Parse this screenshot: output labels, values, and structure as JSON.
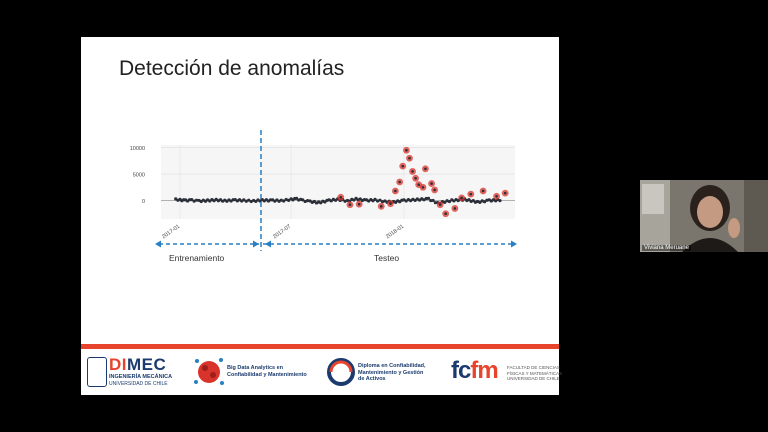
{
  "slide": {
    "title": "Detección de anomalías"
  },
  "chart_data": {
    "type": "scatter",
    "title": "",
    "y_ticks": [
      "10000",
      "5000",
      "0"
    ],
    "x_ticks": [
      "2017-01",
      "2017-07",
      "2018-01"
    ],
    "ylim": [
      -3500,
      10500
    ],
    "grid": true,
    "x_range": [
      "2016-12",
      "2018-07"
    ],
    "series": [
      {
        "marker": "normal",
        "color": "#2b2f3a",
        "x": [
          "2016-12-25",
          "2017-01-01",
          "2017-01-10",
          "2017-01-20",
          "2017-02-01",
          "2017-02-15",
          "2017-03-01",
          "2017-03-15",
          "2017-04-01",
          "2017-04-15",
          "2017-05-01",
          "2017-05-15",
          "2017-06-01",
          "2017-06-15",
          "2017-07-01",
          "2017-07-10",
          "2017-07-20",
          "2017-08-01",
          "2017-08-15",
          "2017-09-01",
          "2017-09-15",
          "2017-10-01",
          "2017-10-15",
          "2017-11-01",
          "2017-11-15",
          "2017-12-01",
          "2017-12-15",
          "2018-01-01",
          "2018-02-10",
          "2018-02-25",
          "2018-03-20",
          "2018-04-10",
          "2018-05-01",
          "2018-05-20",
          "2018-06-10"
        ],
        "y": [
          200,
          100,
          0,
          50,
          -100,
          0,
          100,
          -50,
          50,
          0,
          -100,
          50,
          0,
          -50,
          200,
          300,
          0,
          -200,
          -400,
          0,
          200,
          -100,
          300,
          0,
          100,
          -200,
          -300,
          0,
          300,
          -500,
          0,
          200,
          -300,
          0,
          100
        ]
      },
      {
        "marker": "anomaly",
        "color": "#d9342b",
        "x": [
          "2017-09-20",
          "2017-10-05",
          "2017-10-20",
          "2017-11-25",
          "2017-12-10",
          "2017-12-18",
          "2017-12-25",
          "2017-12-30",
          "2018-01-05",
          "2018-01-10",
          "2018-01-15",
          "2018-01-20",
          "2018-01-25",
          "2018-02-01",
          "2018-02-05",
          "2018-02-15",
          "2018-02-20",
          "2018-03-01",
          "2018-03-10",
          "2018-03-25",
          "2018-04-05",
          "2018-04-20",
          "2018-05-10",
          "2018-06-01",
          "2018-06-15"
        ],
        "y": [
          600,
          -800,
          -700,
          -1100,
          -600,
          1800,
          3500,
          6500,
          9500,
          8000,
          5500,
          4200,
          3000,
          2500,
          6000,
          3200,
          2000,
          -800,
          -2500,
          -1500,
          500,
          1200,
          1800,
          800,
          1400
        ]
      }
    ]
  },
  "phases": {
    "train_label": "Entrenamiento",
    "test_label": "Testeo"
  },
  "footer": {
    "dimec_big_a": "DI",
    "dimec_big_b": "MEC",
    "dimec_sub1": "INGENIERÍA MECÁNICA",
    "dimec_sub2": "UNIVERSIDAD DE CHILE",
    "bigdata_line1": "Big Data Analytics en",
    "bigdata_line2": "Confiabilidad y Mantenimiento",
    "diploma_line1": "Diploma en Confiabilidad,",
    "diploma_line2": "Mantenimiento y Gestión",
    "diploma_line3": "de Activos",
    "fcfm_a": "fc",
    "fcfm_b": "fm",
    "fcfm_line1": "FACULTAD DE CIENCIAS",
    "fcfm_line2": "FÍSICAS Y MATEMÁTICAS",
    "fcfm_line3": "UNIVERSIDAD DE CHILE"
  },
  "video": {
    "participant_name": "Viviana Meruane"
  },
  "colors": {
    "accent": "#e8432d",
    "arrow": "#2a7fc2",
    "brand_blue": "#1b3b6f"
  }
}
